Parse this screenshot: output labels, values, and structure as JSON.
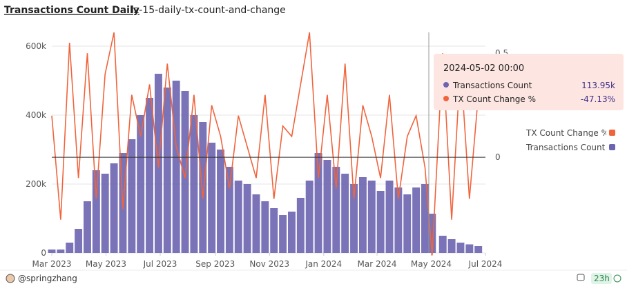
{
  "header": {
    "title": "Transactions Count Daily",
    "query": "lz-15-daily-tx-count-and-change"
  },
  "chart_data": {
    "type": "bar-line",
    "x": [
      "2023-03-01",
      "2023-03-11",
      "2023-03-21",
      "2023-03-31",
      "2023-04-10",
      "2023-04-20",
      "2023-04-30",
      "2023-05-10",
      "2023-05-20",
      "2023-05-30",
      "2023-06-09",
      "2023-06-19",
      "2023-06-29",
      "2023-07-09",
      "2023-07-19",
      "2023-07-29",
      "2023-08-08",
      "2023-08-18",
      "2023-08-28",
      "2023-09-07",
      "2023-09-17",
      "2023-09-27",
      "2023-10-07",
      "2023-10-17",
      "2023-10-27",
      "2023-11-06",
      "2023-11-16",
      "2023-11-26",
      "2023-12-06",
      "2023-12-16",
      "2023-12-26",
      "2024-01-05",
      "2024-01-15",
      "2024-01-25",
      "2024-02-04",
      "2024-02-14",
      "2024-02-24",
      "2024-03-05",
      "2024-03-15",
      "2024-03-25",
      "2024-04-04",
      "2024-04-14",
      "2024-04-24",
      "2024-05-02",
      "2024-05-14",
      "2024-05-24",
      "2024-06-03",
      "2024-06-13",
      "2024-06-23"
    ],
    "xlim": [
      "2023-03-01",
      "2024-07-01"
    ],
    "xticks": [
      {
        "value": "2023-03-01",
        "label": "Mar 2023"
      },
      {
        "value": "2023-05-01",
        "label": "May 2023"
      },
      {
        "value": "2023-07-01",
        "label": "Jul 2023"
      },
      {
        "value": "2023-09-01",
        "label": "Sep 2023"
      },
      {
        "value": "2023-11-01",
        "label": "Nov 2023"
      },
      {
        "value": "2024-01-01",
        "label": "Jan 2024"
      },
      {
        "value": "2024-03-01",
        "label": "Mar 2024"
      },
      {
        "value": "2024-05-01",
        "label": "May 2024"
      },
      {
        "value": "2024-07-01",
        "label": "Jul 2024"
      }
    ],
    "ylim": [
      0,
      640000
    ],
    "yticks": [
      0,
      {
        "value": 200000,
        "label": "200k"
      },
      {
        "value": 400000,
        "label": "400k"
      },
      {
        "value": 600000,
        "label": "600k"
      }
    ],
    "y2lim": [
      -0.46,
      0.6
    ],
    "y2ticks": [
      0,
      0.5
    ],
    "grid": true,
    "series": [
      {
        "name": "Transactions Count",
        "kind": "bar",
        "color": "#6b64b0",
        "values": [
          10000,
          10000,
          30000,
          70000,
          150000,
          240000,
          230000,
          260000,
          290000,
          330000,
          400000,
          450000,
          520000,
          480000,
          500000,
          470000,
          400000,
          380000,
          320000,
          300000,
          250000,
          210000,
          200000,
          170000,
          150000,
          130000,
          110000,
          120000,
          160000,
          210000,
          290000,
          270000,
          250000,
          230000,
          200000,
          220000,
          210000,
          180000,
          210000,
          190000,
          170000,
          190000,
          200000,
          113950,
          50000,
          40000,
          30000,
          25000,
          20000
        ]
      },
      {
        "name": "TX Count Change %",
        "kind": "line",
        "axis": "y2",
        "color": "#f0643c",
        "values": [
          0.2,
          -0.3,
          0.55,
          -0.1,
          0.5,
          -0.2,
          0.4,
          0.6,
          -0.25,
          0.3,
          0.1,
          0.35,
          -0.05,
          0.45,
          0.05,
          -0.1,
          0.3,
          -0.2,
          0.25,
          0.1,
          -0.15,
          0.2,
          0.05,
          -0.1,
          0.3,
          -0.2,
          0.15,
          0.1,
          0.35,
          0.6,
          -0.1,
          0.3,
          -0.15,
          0.45,
          -0.2,
          0.25,
          0.1,
          -0.1,
          0.3,
          -0.2,
          0.1,
          0.2,
          -0.05,
          -0.4713,
          0.5,
          -0.3,
          0.45,
          -0.2,
          0.3
        ]
      }
    ],
    "legend": "right"
  },
  "tooltip": {
    "date": "2024-05-02 00:00",
    "rows": [
      {
        "name": "Transactions Count",
        "value": "113.95k"
      },
      {
        "name": "TX Count Change %",
        "value": "-47.13%"
      }
    ]
  },
  "footer": {
    "author": "@springzhang",
    "age": "23h"
  }
}
